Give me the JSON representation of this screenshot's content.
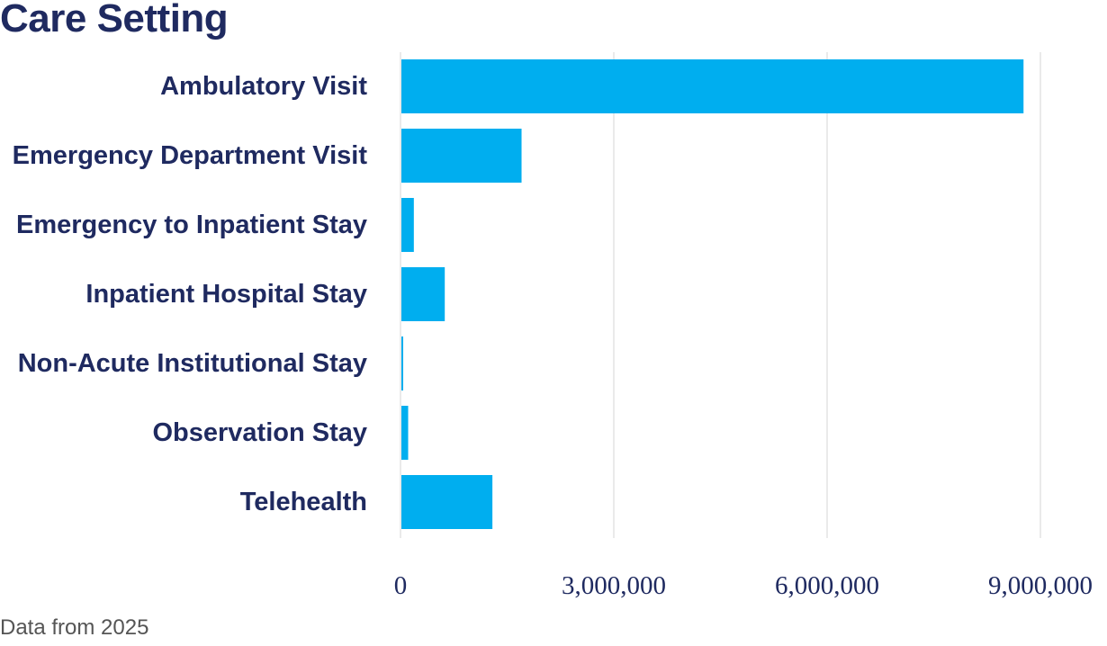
{
  "title": "Care Setting",
  "footnote": "Data from 2025",
  "colors": {
    "bar": "#00aeef",
    "text": "#1f2a60",
    "grid": "#e4e4e4"
  },
  "chart_data": {
    "type": "bar",
    "orientation": "horizontal",
    "title": "Care Setting",
    "xlabel": "",
    "ylabel": "",
    "categories": [
      "Ambulatory Visit",
      "Emergency Department Visit",
      "Emergency to Inpatient Stay",
      "Inpatient Hospital Stay",
      "Non-Acute Institutional Stay",
      "Observation Stay",
      "Telehealth"
    ],
    "values": [
      8750000,
      1690000,
      175000,
      610000,
      20000,
      95000,
      1280000
    ],
    "xlim": [
      0,
      9000000
    ],
    "xticks": [
      0,
      3000000,
      6000000,
      9000000
    ],
    "xtick_labels": [
      "0",
      "3,000,000",
      "6,000,000",
      "9,000,000"
    ],
    "grid": "vertical",
    "legend": "none"
  }
}
